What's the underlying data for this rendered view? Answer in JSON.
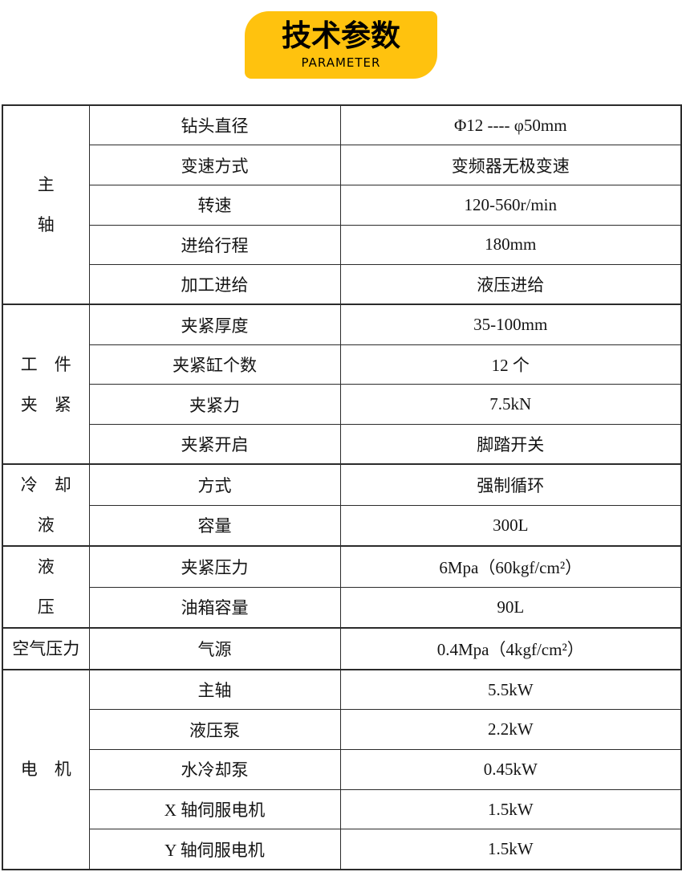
{
  "header": {
    "title": "技术参数",
    "subtitle": "PARAMETER",
    "badge_color": "#FFC20E",
    "text_color": "#000000"
  },
  "table": {
    "border_color": "#2b2b2b",
    "groups": [
      {
        "label": "主轴",
        "label_lines": [
          "主",
          "轴"
        ],
        "rows": [
          {
            "name": "钻头直径",
            "value": "Φ12 ---- φ50mm"
          },
          {
            "name": "变速方式",
            "value": "变频器无极变速"
          },
          {
            "name": "转速",
            "value": "120-560r/min"
          },
          {
            "name": "进给行程",
            "value": "180mm"
          },
          {
            "name": "加工进给",
            "value": "液压进给"
          }
        ]
      },
      {
        "label": "工件夹紧",
        "label_lines": [
          "工　件",
          "夹　紧"
        ],
        "rows": [
          {
            "name": "夹紧厚度",
            "value": "35-100mm"
          },
          {
            "name": "夹紧缸个数",
            "value": "12 个"
          },
          {
            "name": "夹紧力",
            "value": "7.5kN"
          },
          {
            "name": "夹紧开启",
            "value": "脚踏开关"
          }
        ]
      },
      {
        "label": "冷却液",
        "label_lines": [
          "冷　却",
          "液"
        ],
        "rows": [
          {
            "name": "方式",
            "value": "强制循环"
          },
          {
            "name": "容量",
            "value": "300L"
          }
        ]
      },
      {
        "label": "液压",
        "label_lines": [
          "液",
          "压"
        ],
        "rows": [
          {
            "name": "夹紧压力",
            "value": "6Mpa（60kgf/cm²）"
          },
          {
            "name": "油箱容量",
            "value": "90L"
          }
        ]
      },
      {
        "label": "空气压力",
        "label_lines": [
          "空气压力"
        ],
        "rows": [
          {
            "name": "气源",
            "value": "0.4Mpa（4kgf/cm²）"
          }
        ]
      },
      {
        "label": "电机",
        "label_lines": [
          "电　机"
        ],
        "rows": [
          {
            "name": "主轴",
            "value": "5.5kW"
          },
          {
            "name": "液压泵",
            "value": "2.2kW"
          },
          {
            "name": "水冷却泵",
            "value": "0.45kW"
          },
          {
            "name": "X 轴伺服电机",
            "value": "1.5kW"
          },
          {
            "name": "Y 轴伺服电机",
            "value": "1.5kW"
          }
        ]
      }
    ]
  }
}
